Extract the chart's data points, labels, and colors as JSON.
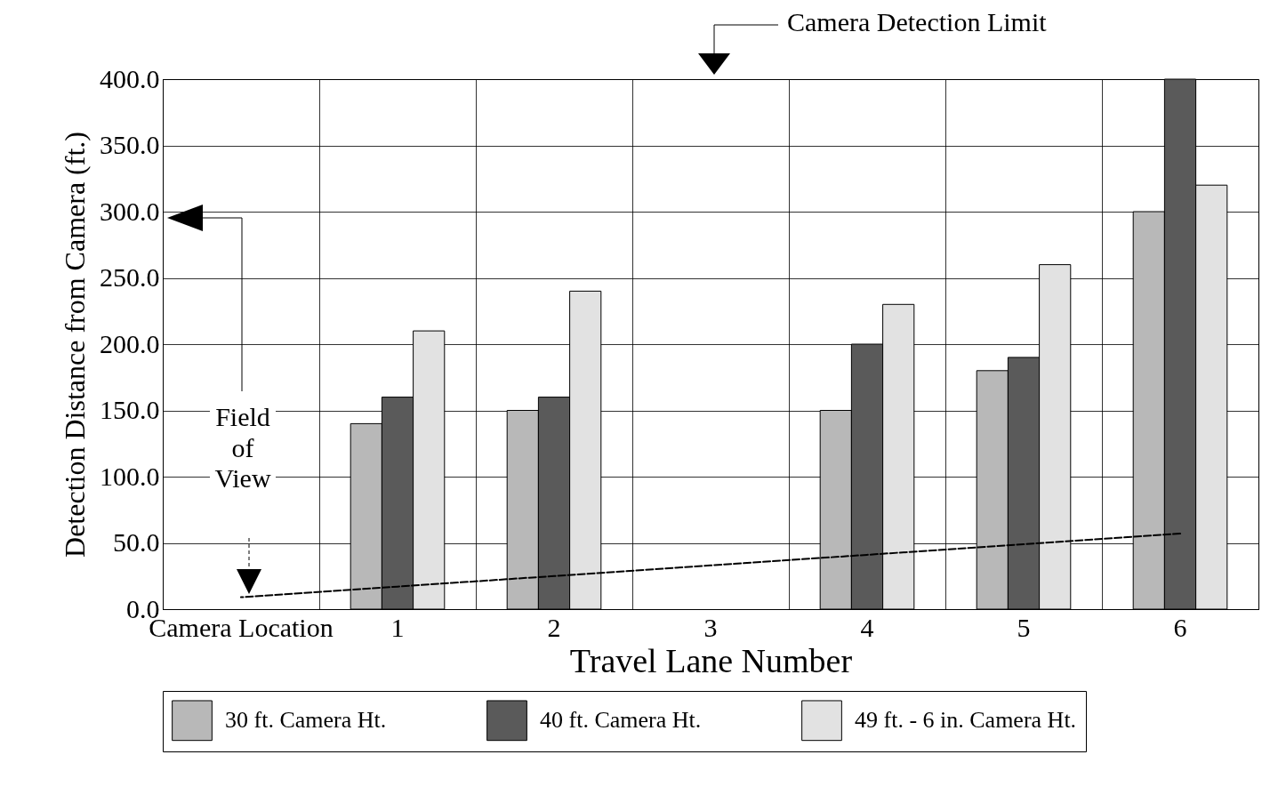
{
  "chart_data": {
    "type": "bar",
    "categories": [
      "Camera Location",
      "1",
      "2",
      "3",
      "4",
      "5",
      "6"
    ],
    "xlabel": "Travel Lane Number",
    "ylabel": "Detection Distance from Camera (ft.)",
    "ylim": [
      0,
      400
    ],
    "yticks": [
      {
        "value": 0,
        "label": "0.0"
      },
      {
        "value": 50,
        "label": "50.0"
      },
      {
        "value": 100,
        "label": "100.0"
      },
      {
        "value": 150,
        "label": "150.0"
      },
      {
        "value": 200,
        "label": "200.0"
      },
      {
        "value": 250,
        "label": "250.0"
      },
      {
        "value": 300,
        "label": "300.0"
      },
      {
        "value": 350,
        "label": "350.0"
      },
      {
        "value": 400,
        "label": "400.0"
      }
    ],
    "series": [
      {
        "name": "30 ft. Camera Ht.",
        "color": "#b8b8b8",
        "values": [
          null,
          140,
          150,
          null,
          150,
          180,
          300
        ]
      },
      {
        "name": "40 ft. Camera Ht.",
        "color": "#5a5a5a",
        "values": [
          null,
          160,
          160,
          null,
          200,
          190,
          400
        ]
      },
      {
        "name": "49 ft. - 6 in. Camera Ht.",
        "color": "#e2e2e2",
        "values": [
          null,
          210,
          240,
          null,
          230,
          260,
          320
        ]
      },
      {
        "type": "line",
        "color": "#000000",
        "line_style": "dashed",
        "values": [
          9,
          17,
          25,
          33,
          41,
          49,
          57
        ]
      }
    ],
    "annotations": [
      "Camera Detection Limit",
      "Field of View"
    ],
    "grid": true,
    "legend": "bottom"
  }
}
